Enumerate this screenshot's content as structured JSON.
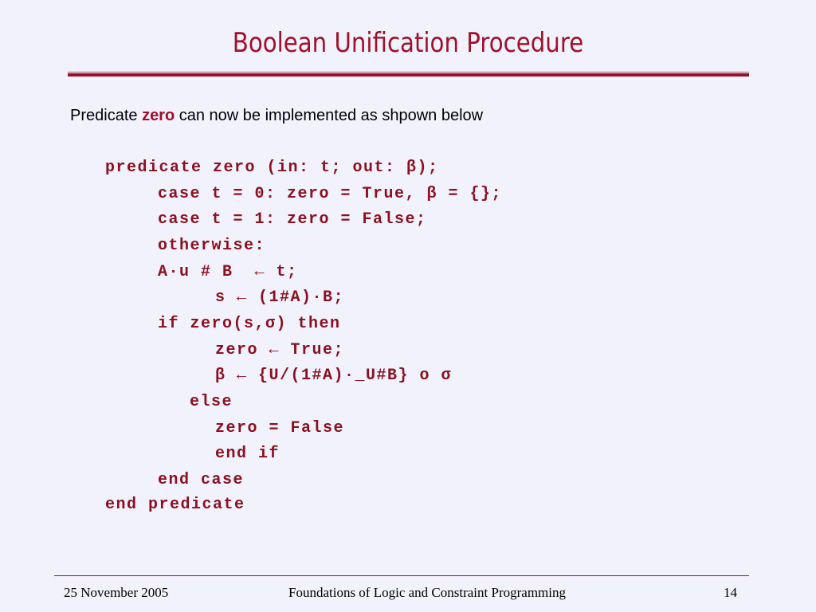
{
  "slide": {
    "title": "Boolean Unification Procedure",
    "intro_before": "Predicate ",
    "intro_keyword": "zero",
    "intro_after": " can now be implemented as shpown below",
    "code_lines": [
      "predicate zero (in: t; out: β);",
      "case t = 0: zero = True, β = {};",
      "case t = 1: zero = False;",
      "otherwise:",
      "A·u # B  ← t;",
      "s ← (1#A)·B;",
      "if zero(s,σ) then",
      "zero ← True;",
      "β ← {U/(1#A)·_U#B} o σ",
      "else",
      "zero = False",
      "end if",
      "end case",
      "end predicate"
    ]
  },
  "footer": {
    "date": "25 November 2005",
    "course": "Foundations of Logic and Constraint Programming",
    "page": "14"
  }
}
